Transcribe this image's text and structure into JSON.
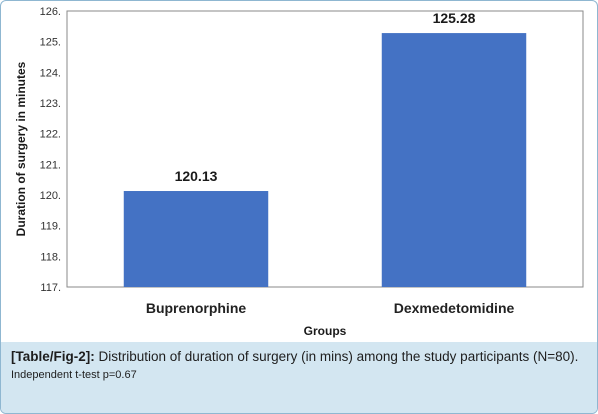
{
  "chart_data": {
    "type": "bar",
    "categories": [
      "Buprenorphine",
      "Dexmedetomidine"
    ],
    "values": [
      120.13,
      125.28
    ],
    "data_labels": [
      "120.13",
      "125.28"
    ],
    "title": "",
    "xlabel": "Groups",
    "ylabel": "Duration of surgery in minutes",
    "ylim": [
      117,
      126
    ],
    "yticks": [
      "117.",
      "118.",
      "119.",
      "120.",
      "121.",
      "122.",
      "123.",
      "124.",
      "125.",
      "126."
    ],
    "bar_color": "#4472c4",
    "grid": false
  },
  "caption": {
    "label": "[Table/Fig-2]:",
    "text": "Distribution of duration of surgery (in mins) among the study participants (N=80).",
    "note": "Independent t-test p=0.67"
  },
  "colors": {
    "caption_bg": "#d3e6f1",
    "border": "#8fb7d1"
  }
}
